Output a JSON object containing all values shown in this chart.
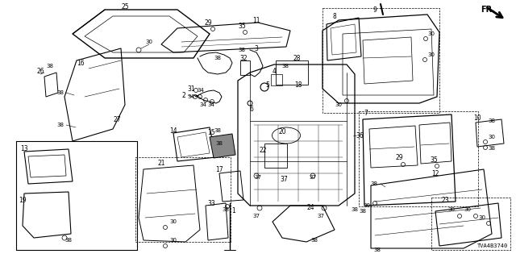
{
  "diagram_id": "TVA4B3740",
  "fr_label": "FR.",
  "background_color": "#ffffff",
  "line_color": "#000000",
  "text_color": "#000000",
  "fig_width": 6.4,
  "fig_height": 3.2,
  "dpi": 100
}
